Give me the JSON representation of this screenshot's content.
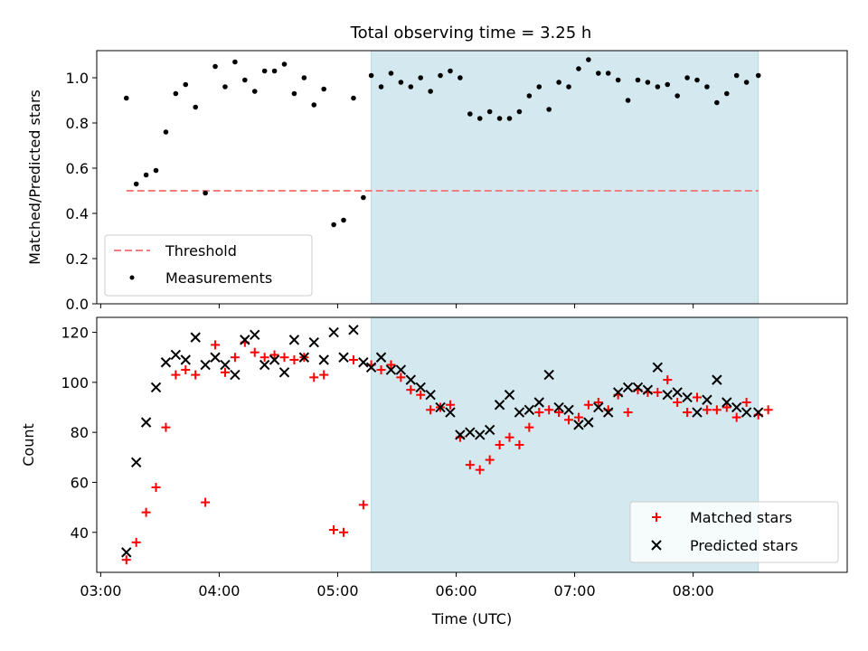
{
  "figure_title": "Total observing time = 3.25 h",
  "chart_data": [
    {
      "type": "scatter",
      "ylabel": "Matched/Predicted stars",
      "xlabel": "",
      "x_unit": "time (UTC)",
      "xlim": [
        "02:58",
        "09:18"
      ],
      "ylim": [
        0,
        1.12
      ],
      "yticks": [
        0.0,
        0.2,
        0.4,
        0.6,
        0.8,
        1.0
      ],
      "ytick_labels": [
        "0.0",
        "0.2",
        "0.4",
        "0.6",
        "0.8",
        "1.0"
      ],
      "shaded_span": [
        "05:17",
        "08:33"
      ],
      "shade_color": "#d3e9ef",
      "threshold": {
        "name": "Threshold",
        "y": 0.5,
        "x_range": [
          "03:13",
          "08:33"
        ],
        "color": "#f08080"
      },
      "legend": {
        "location": "lower left",
        "entries": [
          "Threshold",
          "Measurements"
        ]
      },
      "series": [
        {
          "name": "Measurements",
          "color": "#000000",
          "points": [
            [
              "03:13",
              0.91
            ],
            [
              "03:18",
              0.53
            ],
            [
              "03:23",
              0.57
            ],
            [
              "03:28",
              0.59
            ],
            [
              "03:33",
              0.76
            ],
            [
              "03:38",
              0.93
            ],
            [
              "03:43",
              0.97
            ],
            [
              "03:48",
              0.87
            ],
            [
              "03:53",
              0.49
            ],
            [
              "03:58",
              1.05
            ],
            [
              "04:03",
              0.96
            ],
            [
              "04:08",
              1.07
            ],
            [
              "04:13",
              0.99
            ],
            [
              "04:18",
              0.94
            ],
            [
              "04:23",
              1.03
            ],
            [
              "04:28",
              1.03
            ],
            [
              "04:33",
              1.06
            ],
            [
              "04:38",
              0.93
            ],
            [
              "04:43",
              1.0
            ],
            [
              "04:48",
              0.88
            ],
            [
              "04:53",
              0.95
            ],
            [
              "04:58",
              0.35
            ],
            [
              "05:03",
              0.37
            ],
            [
              "05:08",
              0.91
            ],
            [
              "05:13",
              0.47
            ],
            [
              "05:17",
              1.01
            ],
            [
              "05:22",
              0.96
            ],
            [
              "05:27",
              1.02
            ],
            [
              "05:32",
              0.98
            ],
            [
              "05:37",
              0.96
            ],
            [
              "05:42",
              1.0
            ],
            [
              "05:47",
              0.94
            ],
            [
              "05:52",
              1.01
            ],
            [
              "05:57",
              1.03
            ],
            [
              "06:02",
              1.0
            ],
            [
              "06:07",
              0.84
            ],
            [
              "06:12",
              0.82
            ],
            [
              "06:17",
              0.85
            ],
            [
              "06:22",
              0.82
            ],
            [
              "06:27",
              0.82
            ],
            [
              "06:32",
              0.85
            ],
            [
              "06:37",
              0.92
            ],
            [
              "06:42",
              0.96
            ],
            [
              "06:47",
              0.86
            ],
            [
              "06:52",
              0.98
            ],
            [
              "06:57",
              0.96
            ],
            [
              "07:02",
              1.04
            ],
            [
              "07:07",
              1.08
            ],
            [
              "07:12",
              1.02
            ],
            [
              "07:17",
              1.02
            ],
            [
              "07:22",
              0.99
            ],
            [
              "07:27",
              0.9
            ],
            [
              "07:32",
              0.99
            ],
            [
              "07:37",
              0.98
            ],
            [
              "07:42",
              0.96
            ],
            [
              "07:47",
              0.97
            ],
            [
              "07:52",
              0.92
            ],
            [
              "07:57",
              1.0
            ],
            [
              "08:02",
              0.99
            ],
            [
              "08:07",
              0.96
            ],
            [
              "08:12",
              0.89
            ],
            [
              "08:17",
              0.93
            ],
            [
              "08:22",
              1.01
            ],
            [
              "08:27",
              0.98
            ],
            [
              "08:33",
              1.01
            ]
          ]
        }
      ]
    },
    {
      "type": "scatter",
      "ylabel": "Count",
      "xlabel": "Time (UTC)",
      "xlim": [
        "02:58",
        "09:18"
      ],
      "ylim": [
        24,
        126
      ],
      "yticks": [
        40,
        60,
        80,
        100,
        120
      ],
      "ytick_labels": [
        "40",
        "60",
        "80",
        "100",
        "120"
      ],
      "xticks": [
        "03:00",
        "04:00",
        "05:00",
        "06:00",
        "07:00",
        "08:00"
      ],
      "xtick_labels": [
        "03:00",
        "04:00",
        "05:00",
        "06:00",
        "07:00",
        "08:00"
      ],
      "shaded_span": [
        "05:17",
        "08:33"
      ],
      "shade_color": "#d3e9ef",
      "legend": {
        "location": "lower right",
        "entries": [
          "Matched stars",
          "Predicted stars"
        ]
      },
      "series": [
        {
          "name": "Matched stars",
          "marker": "plus",
          "color": "#ff0000",
          "points": [
            [
              "03:13",
              29
            ],
            [
              "03:18",
              36
            ],
            [
              "03:23",
              48
            ],
            [
              "03:28",
              58
            ],
            [
              "03:33",
              82
            ],
            [
              "03:38",
              103
            ],
            [
              "03:43",
              105
            ],
            [
              "03:48",
              103
            ],
            [
              "03:53",
              52
            ],
            [
              "03:58",
              115
            ],
            [
              "04:03",
              104
            ],
            [
              "04:08",
              110
            ],
            [
              "04:13",
              116
            ],
            [
              "04:18",
              112
            ],
            [
              "04:23",
              110
            ],
            [
              "04:28",
              111
            ],
            [
              "04:33",
              110
            ],
            [
              "04:38",
              109
            ],
            [
              "04:43",
              110
            ],
            [
              "04:48",
              102
            ],
            [
              "04:53",
              103
            ],
            [
              "04:58",
              41
            ],
            [
              "05:03",
              40
            ],
            [
              "05:08",
              109
            ],
            [
              "05:13",
              51
            ],
            [
              "05:17",
              107
            ],
            [
              "05:22",
              105
            ],
            [
              "05:27",
              107
            ],
            [
              "05:32",
              102
            ],
            [
              "05:37",
              97
            ],
            [
              "05:42",
              95
            ],
            [
              "05:47",
              89
            ],
            [
              "05:52",
              90
            ],
            [
              "05:57",
              91
            ],
            [
              "06:02",
              78
            ],
            [
              "06:07",
              67
            ],
            [
              "06:12",
              65
            ],
            [
              "06:17",
              69
            ],
            [
              "06:22",
              75
            ],
            [
              "06:27",
              78
            ],
            [
              "06:32",
              75
            ],
            [
              "06:37",
              82
            ],
            [
              "06:42",
              88
            ],
            [
              "06:47",
              89
            ],
            [
              "06:52",
              88
            ],
            [
              "06:57",
              85
            ],
            [
              "07:02",
              86
            ],
            [
              "07:07",
              91
            ],
            [
              "07:12",
              92
            ],
            [
              "07:17",
              89
            ],
            [
              "07:22",
              95
            ],
            [
              "07:27",
              88
            ],
            [
              "07:32",
              97
            ],
            [
              "07:37",
              96
            ],
            [
              "07:42",
              96
            ],
            [
              "07:47",
              101
            ],
            [
              "07:52",
              92
            ],
            [
              "07:57",
              88
            ],
            [
              "08:02",
              94
            ],
            [
              "08:07",
              89
            ],
            [
              "08:12",
              89
            ],
            [
              "08:17",
              90
            ],
            [
              "08:22",
              86
            ],
            [
              "08:27",
              92
            ],
            [
              "08:33",
              87
            ],
            [
              "08:38",
              89
            ]
          ]
        },
        {
          "name": "Predicted stars",
          "marker": "x",
          "color": "#000000",
          "points": [
            [
              "03:13",
              32
            ],
            [
              "03:18",
              68
            ],
            [
              "03:23",
              84
            ],
            [
              "03:28",
              98
            ],
            [
              "03:33",
              108
            ],
            [
              "03:38",
              111
            ],
            [
              "03:43",
              109
            ],
            [
              "03:48",
              118
            ],
            [
              "03:53",
              107
            ],
            [
              "03:58",
              110
            ],
            [
              "04:03",
              107
            ],
            [
              "04:08",
              103
            ],
            [
              "04:13",
              117
            ],
            [
              "04:18",
              119
            ],
            [
              "04:23",
              107
            ],
            [
              "04:28",
              109
            ],
            [
              "04:33",
              104
            ],
            [
              "04:38",
              117
            ],
            [
              "04:43",
              110
            ],
            [
              "04:48",
              116
            ],
            [
              "04:53",
              109
            ],
            [
              "04:58",
              120
            ],
            [
              "05:03",
              110
            ],
            [
              "05:08",
              121
            ],
            [
              "05:13",
              108
            ],
            [
              "05:17",
              106
            ],
            [
              "05:22",
              110
            ],
            [
              "05:27",
              105
            ],
            [
              "05:32",
              105
            ],
            [
              "05:37",
              101
            ],
            [
              "05:42",
              98
            ],
            [
              "05:47",
              95
            ],
            [
              "05:52",
              90
            ],
            [
              "05:57",
              88
            ],
            [
              "06:02",
              79
            ],
            [
              "06:07",
              80
            ],
            [
              "06:12",
              79
            ],
            [
              "06:17",
              81
            ],
            [
              "06:22",
              91
            ],
            [
              "06:27",
              95
            ],
            [
              "06:32",
              88
            ],
            [
              "06:37",
              89
            ],
            [
              "06:42",
              92
            ],
            [
              "06:47",
              103
            ],
            [
              "06:52",
              90
            ],
            [
              "06:57",
              89
            ],
            [
              "07:02",
              83
            ],
            [
              "07:07",
              84
            ],
            [
              "07:12",
              90
            ],
            [
              "07:17",
              88
            ],
            [
              "07:22",
              96
            ],
            [
              "07:27",
              98
            ],
            [
              "07:32",
              98
            ],
            [
              "07:37",
              97
            ],
            [
              "07:42",
              106
            ],
            [
              "07:47",
              95
            ],
            [
              "07:52",
              96
            ],
            [
              "07:57",
              94
            ],
            [
              "08:02",
              88
            ],
            [
              "08:07",
              93
            ],
            [
              "08:12",
              101
            ],
            [
              "08:17",
              92
            ],
            [
              "08:22",
              90
            ],
            [
              "08:27",
              88
            ],
            [
              "08:33",
              88
            ]
          ]
        }
      ]
    }
  ]
}
